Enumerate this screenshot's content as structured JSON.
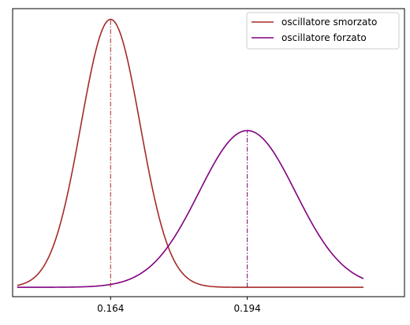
{
  "chart_data": {
    "type": "line",
    "title": "",
    "xlabel": "",
    "ylabel": "",
    "x_ticks": [
      0.164,
      0.194
    ],
    "x_tick_labels": [
      "0.164",
      "0.194"
    ],
    "xlim": [
      0.1425,
      0.2285
    ],
    "ylim": [
      -0.035,
      1.04
    ],
    "x_range": [
      0.1435,
      0.2195
    ],
    "legend_position": "top-right",
    "grid": false,
    "series": [
      {
        "name": "oscillatore smorzato",
        "color": "#a52a2a",
        "center": 0.164,
        "sigma": 0.0065,
        "peak": 1.0,
        "x_range": [
          0.1435,
          0.2195
        ]
      },
      {
        "name": "oscillatore forzato",
        "color": "#800080",
        "center": 0.194,
        "sigma": 0.0106,
        "peak": 0.585,
        "x_range": [
          0.1435,
          0.2195
        ]
      }
    ],
    "vlines": [
      {
        "x": 0.164,
        "color": "#a52a2a",
        "style": "dashdot"
      },
      {
        "x": 0.194,
        "color": "#800080",
        "style": "dashdot"
      }
    ]
  }
}
